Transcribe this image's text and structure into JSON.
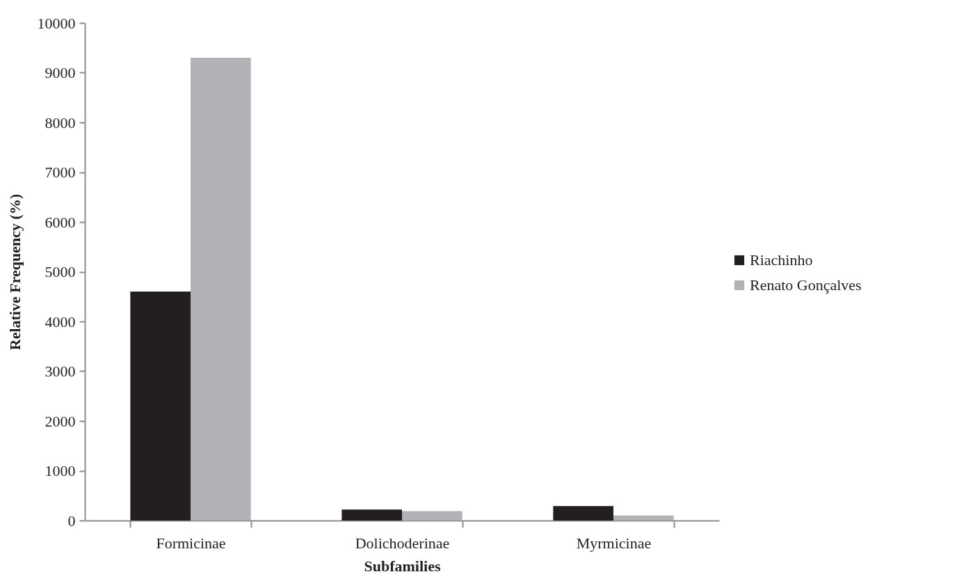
{
  "chart_data": {
    "type": "bar",
    "xlabel": "Subfamilies",
    "ylabel": "Relative Frequency (%)",
    "categories": [
      "Formicinae",
      "Dolichoderinae",
      "Myrmicinae"
    ],
    "series": [
      {
        "name": "Riachinho",
        "color": "#231f20",
        "values": [
          4600,
          220,
          290
        ]
      },
      {
        "name": "Renato Gonçalves",
        "color": "#b1b2b6",
        "values": [
          9300,
          190,
          100
        ]
      }
    ],
    "ylim": [
      0,
      10000
    ],
    "yticks": [
      0,
      1000,
      2000,
      3000,
      4000,
      5000,
      6000,
      7000,
      8000,
      9000,
      10000
    ],
    "grid": false,
    "legend": "right"
  }
}
